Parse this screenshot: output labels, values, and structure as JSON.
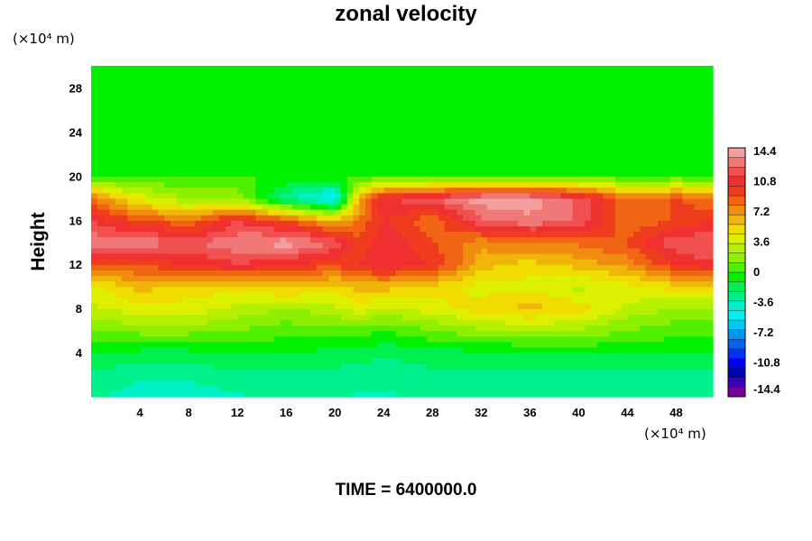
{
  "chart_data": {
    "type": "heatmap",
    "title": "zonal velocity",
    "ylabel": "Height",
    "x_unit": "(×10⁴ m)",
    "y_unit": "(×10⁴ m)",
    "footer": "TIME = 6400000.0",
    "xlim": [
      0,
      51
    ],
    "ylim": [
      0,
      30
    ],
    "x_ticks": [
      "4",
      "8",
      "12",
      "16",
      "20",
      "24",
      "28",
      "32",
      "36",
      "40",
      "44",
      "48"
    ],
    "y_ticks": [
      "4",
      "8",
      "12",
      "16",
      "20",
      "24",
      "28"
    ],
    "colorbar": {
      "range": [
        -14.4,
        14.4
      ],
      "tick_labels": [
        "14.4",
        "10.8",
        "7.2",
        "3.6",
        "0",
        "-3.6",
        "-7.2",
        "-10.8",
        "-14.4"
      ],
      "colors_high_to_low": [
        "#f5a0a0",
        "#f07878",
        "#f05050",
        "#f03030",
        "#f03c1e",
        "#f06414",
        "#f08c0f",
        "#f0b40a",
        "#f0dc00",
        "#dcf000",
        "#b4f000",
        "#8cf000",
        "#50f000",
        "#00f000",
        "#00f050",
        "#00f08c",
        "#00f0c8",
        "#00f0f0",
        "#00c8f0",
        "#0096f0",
        "#0064f0",
        "#0032f0",
        "#0000f0",
        "#0000b4",
        "#3c00b4",
        "#780096"
      ]
    },
    "x_values": [
      0,
      4,
      8,
      12,
      16,
      20,
      22,
      24,
      28,
      32,
      36,
      40,
      44,
      48,
      51
    ],
    "y_values": [
      0,
      2,
      4,
      6,
      8,
      10,
      12,
      14,
      16,
      18,
      20,
      30
    ],
    "z": [
      [
        -3.0,
        -4.0,
        -4.0,
        -3.5,
        -3.0,
        -3.0,
        -3.5,
        -3.5,
        -3.0,
        -3.0,
        -3.0,
        -3.0,
        -3.0,
        -3.0,
        -3.0
      ],
      [
        -2.5,
        -3.0,
        -3.0,
        -2.5,
        -2.5,
        -2.5,
        -3.0,
        -3.0,
        -2.5,
        -2.5,
        -2.5,
        -2.5,
        -2.5,
        -2.5,
        -2.5
      ],
      [
        -1.0,
        -1.5,
        -1.5,
        -1.0,
        -1.0,
        -1.5,
        -1.5,
        -2.0,
        -1.5,
        -1.5,
        -1.0,
        -1.0,
        -1.0,
        -1.0,
        -1.0
      ],
      [
        1.0,
        1.5,
        1.5,
        1.0,
        0.5,
        0.5,
        0.5,
        0.0,
        1.0,
        2.0,
        2.0,
        2.0,
        1.0,
        0.5,
        0.5
      ],
      [
        3.0,
        4.0,
        4.0,
        3.0,
        2.0,
        3.0,
        4.0,
        3.0,
        4.0,
        5.0,
        6.0,
        5.0,
        3.0,
        2.0,
        2.0
      ],
      [
        4.0,
        6.0,
        5.0,
        5.0,
        6.0,
        5.0,
        6.0,
        6.0,
        5.0,
        4.0,
        4.0,
        3.0,
        4.0,
        5.0,
        5.0
      ],
      [
        9.0,
        9.0,
        10.0,
        11.0,
        10.0,
        9.0,
        10.0,
        11.0,
        10.0,
        6.0,
        5.0,
        6.0,
        7.0,
        10.0,
        11.0
      ],
      [
        13.0,
        13.0,
        12.0,
        13.0,
        14.0,
        12.0,
        9.0,
        11.0,
        9.0,
        7.0,
        8.0,
        8.0,
        9.0,
        12.0,
        12.0
      ],
      [
        11.0,
        9.0,
        8.0,
        11.0,
        9.0,
        6.0,
        8.0,
        10.0,
        8.0,
        12.0,
        13.0,
        12.0,
        8.0,
        9.0,
        10.0
      ],
      [
        8.0,
        4.0,
        2.0,
        2.0,
        -3.0,
        -6.0,
        6.0,
        11.0,
        12.0,
        14.0,
        14.0,
        12.0,
        8.0,
        9.0,
        8.0
      ],
      [
        0.0,
        0.0,
        0.0,
        0.0,
        0.0,
        0.0,
        0.0,
        0.0,
        0.0,
        0.0,
        0.0,
        0.0,
        0.0,
        0.0,
        0.0
      ],
      [
        0.0,
        0.0,
        0.0,
        0.0,
        0.0,
        0.0,
        0.0,
        0.0,
        0.0,
        0.0,
        0.0,
        0.0,
        0.0,
        0.0,
        0.0
      ]
    ],
    "grid": false,
    "legend": "colorbar-right"
  }
}
